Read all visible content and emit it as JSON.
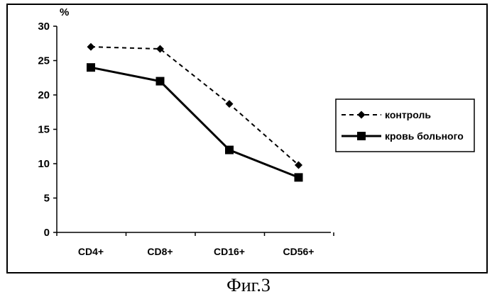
{
  "chart_data": {
    "type": "line",
    "categories": [
      "CD4+",
      "CD8+",
      "CD16+",
      "CD56+"
    ],
    "series": [
      {
        "name": "контроль",
        "values": [
          27,
          26.7,
          18.7,
          9.8
        ],
        "style": "dashed",
        "marker": "diamond",
        "color": "#000000"
      },
      {
        "name": "кровь больного",
        "values": [
          24,
          22,
          12,
          8
        ],
        "style": "solid",
        "marker": "square",
        "color": "#000000"
      }
    ],
    "ylabel": "%",
    "ylim": [
      0,
      30
    ],
    "yticks": [
      0,
      5,
      10,
      15,
      20,
      25,
      30
    ],
    "grid": false,
    "legend_position": "right"
  },
  "caption": "Фиг.3"
}
